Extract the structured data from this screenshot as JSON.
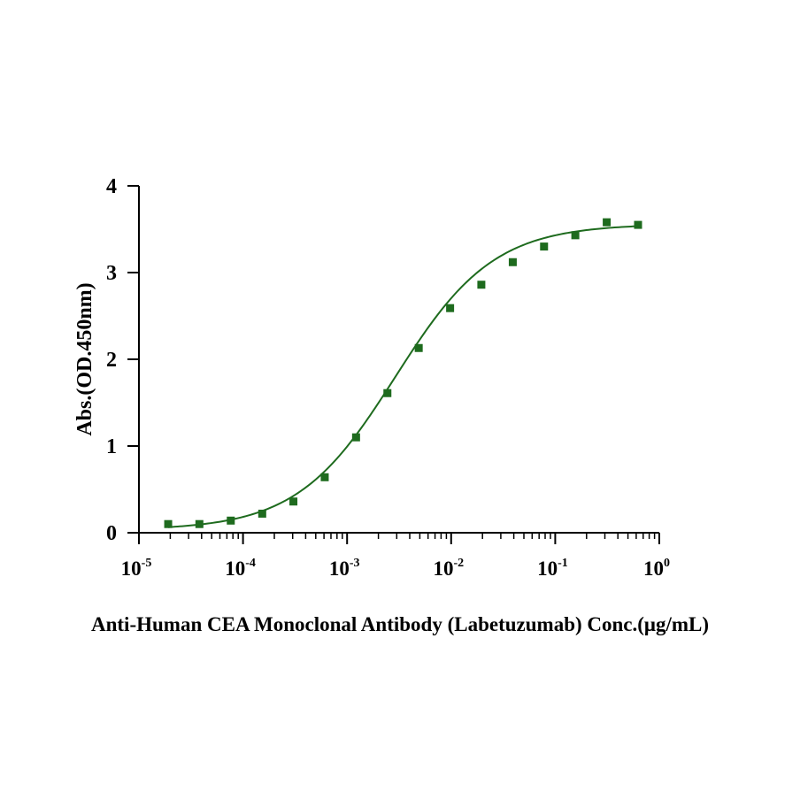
{
  "chart_data": {
    "type": "scatter",
    "title": "",
    "xlabel": "Anti-Human CEA Monoclonal Antibody  (Labetuzumab) Conc.(μg/mL)",
    "ylabel": "Abs.(OD.450nm)",
    "xscale": "log",
    "xlim": [
      1e-05,
      1
    ],
    "ylim": [
      0,
      4
    ],
    "grid": false,
    "legend": "none",
    "colors": {
      "series": "#1e6b1e",
      "axis": "#000000"
    },
    "x_ticks": [
      {
        "base": "10",
        "exp": "-5",
        "value": 1e-05
      },
      {
        "base": "10",
        "exp": "-4",
        "value": 0.0001
      },
      {
        "base": "10",
        "exp": "-3",
        "value": 0.001
      },
      {
        "base": "10",
        "exp": "-2",
        "value": 0.01
      },
      {
        "base": "10",
        "exp": "-1",
        "value": 0.1
      },
      {
        "base": "10",
        "exp": "0",
        "value": 1
      }
    ],
    "y_ticks": [
      {
        "label": "0",
        "value": 0
      },
      {
        "label": "1",
        "value": 1
      },
      {
        "label": "2",
        "value": 2
      },
      {
        "label": "3",
        "value": 3
      },
      {
        "label": "4",
        "value": 4
      }
    ],
    "series": [
      {
        "x": [
          1.91e-05,
          3.81e-05,
          7.63e-05,
          0.000153,
          0.000305,
          0.00061,
          0.00122,
          0.00244,
          0.00488,
          0.00977,
          0.0195,
          0.0391,
          0.0781,
          0.156,
          0.3125,
          0.625
        ],
        "y": [
          0.1,
          0.1,
          0.14,
          0.22,
          0.36,
          0.64,
          1.1,
          1.61,
          2.13,
          2.59,
          2.86,
          3.12,
          3.3,
          3.43,
          3.58,
          3.55
        ]
      }
    ],
    "fit": {
      "model": "4PL",
      "bottom": 0.03,
      "top": 3.56,
      "ec50": 0.0029,
      "hill": 0.92
    }
  }
}
